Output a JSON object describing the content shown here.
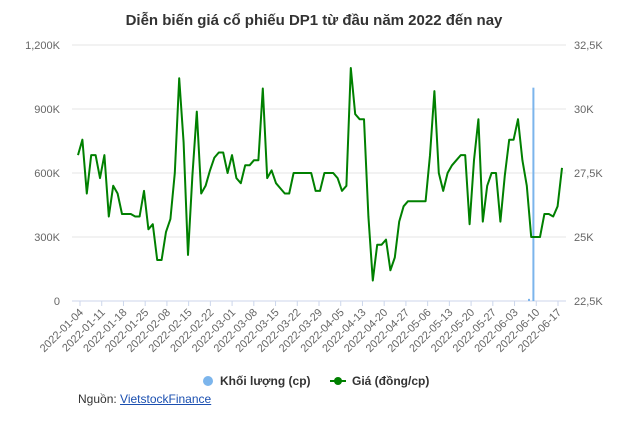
{
  "chart_data": {
    "type": "line",
    "title": "Diễn biến giá cổ phiếu DP1 từ đầu năm 2022 đến nay",
    "xlabel": "",
    "ylabel": "",
    "left_axis_ticks": [
      "0",
      "300K",
      "600K",
      "900K",
      "1,200K"
    ],
    "left_ylim": [
      0,
      1200000
    ],
    "right_axis_ticks": [
      "22,5K",
      "25K",
      "27,5K",
      "30K",
      "32,5K"
    ],
    "right_ylim": [
      22500,
      32500
    ],
    "x_tick_labels": [
      "2022-01-04",
      "2022-01-11",
      "2022-01-18",
      "2022-01-25",
      "2022-02-08",
      "2022-02-15",
      "2022-02-22",
      "2022-03-01",
      "2022-03-08",
      "2022-03-15",
      "2022-03-22",
      "2022-03-29",
      "2022-04-05",
      "2022-04-13",
      "2022-04-20",
      "2022-04-27",
      "2022-05-06",
      "2022-05-13",
      "2022-05-20",
      "2022-05-27",
      "2022-06-03",
      "2022-06-10",
      "2022-06-17"
    ],
    "grid": true,
    "legend_position": "bottom",
    "series": [
      {
        "name": "Khối lượng (cp)",
        "type": "bar",
        "axis": "left",
        "color": "#7cb5ec",
        "values": [
          0,
          0,
          0,
          0,
          0,
          0,
          0,
          0,
          0,
          0,
          0,
          0,
          0,
          0,
          0,
          0,
          0,
          0,
          0,
          0,
          0,
          0,
          0,
          0,
          0,
          0,
          0,
          0,
          0,
          0,
          0,
          0,
          0,
          0,
          0,
          0,
          0,
          0,
          0,
          0,
          0,
          0,
          0,
          0,
          0,
          0,
          0,
          0,
          0,
          0,
          0,
          0,
          0,
          0,
          0,
          0,
          0,
          0,
          0,
          0,
          0,
          0,
          0,
          0,
          0,
          0,
          0,
          0,
          0,
          0,
          0,
          0,
          0,
          0,
          0,
          0,
          0,
          0,
          0,
          0,
          0,
          0,
          0,
          0,
          0,
          0,
          0,
          0,
          0,
          0,
          0,
          0,
          0,
          0,
          0,
          0,
          0,
          0,
          0,
          0,
          0,
          0,
          0,
          0,
          0,
          0,
          0,
          0,
          0,
          0,
          0,
          0,
          0,
          0,
          0,
          0,
          0,
          0,
          0,
          0,
          0,
          0,
          0,
          0,
          0,
          0,
          0,
          0,
          0,
          0,
          0,
          0,
          10000,
          1000000,
          0,
          0,
          0,
          0,
          0,
          0,
          0,
          0,
          0,
          0,
          0,
          0,
          0,
          0,
          0,
          0,
          0,
          0,
          0
        ]
      },
      {
        "name": "Giá (đồng/cp)",
        "type": "line",
        "axis": "right",
        "color": "#008000",
        "values": []
      }
    ],
    "price_points": [
      {
        "t": 0,
        "p": 28200
      },
      {
        "t": 1,
        "p": 28800
      },
      {
        "t": 2,
        "p": 26700
      },
      {
        "t": 3,
        "p": 28200
      },
      {
        "t": 4,
        "p": 28200
      },
      {
        "t": 5,
        "p": 27300
      },
      {
        "t": 6,
        "p": 28200
      },
      {
        "t": 7,
        "p": 25800
      },
      {
        "t": 8,
        "p": 27000
      },
      {
        "t": 9,
        "p": 26700
      },
      {
        "t": 10,
        "p": 25900
      },
      {
        "t": 11,
        "p": 25900
      },
      {
        "t": 12,
        "p": 25900
      },
      {
        "t": 13,
        "p": 25800
      },
      {
        "t": 14,
        "p": 25800
      },
      {
        "t": 15,
        "p": 26800
      },
      {
        "t": 16,
        "p": 25300
      },
      {
        "t": 17,
        "p": 25500
      },
      {
        "t": 18,
        "p": 24100
      },
      {
        "t": 19,
        "p": 24100
      },
      {
        "t": 20,
        "p": 25200
      },
      {
        "t": 21,
        "p": 25700
      },
      {
        "t": 22,
        "p": 27500
      },
      {
        "t": 23,
        "p": 31200
      },
      {
        "t": 24,
        "p": 28700
      },
      {
        "t": 25,
        "p": 24300
      },
      {
        "t": 26,
        "p": 27400
      },
      {
        "t": 27,
        "p": 29900
      },
      {
        "t": 28,
        "p": 26700
      },
      {
        "t": 29,
        "p": 27000
      },
      {
        "t": 30,
        "p": 27600
      },
      {
        "t": 31,
        "p": 28100
      },
      {
        "t": 32,
        "p": 28300
      },
      {
        "t": 33,
        "p": 28300
      },
      {
        "t": 34,
        "p": 27500
      },
      {
        "t": 35,
        "p": 28200
      },
      {
        "t": 36,
        "p": 27300
      },
      {
        "t": 37,
        "p": 27100
      },
      {
        "t": 38,
        "p": 27800
      },
      {
        "t": 39,
        "p": 27800
      },
      {
        "t": 40,
        "p": 28000
      },
      {
        "t": 41,
        "p": 28000
      },
      {
        "t": 42,
        "p": 30800
      },
      {
        "t": 43,
        "p": 27300
      },
      {
        "t": 44,
        "p": 27600
      },
      {
        "t": 45,
        "p": 27100
      },
      {
        "t": 46,
        "p": 26900
      },
      {
        "t": 47,
        "p": 26700
      },
      {
        "t": 48,
        "p": 26700
      },
      {
        "t": 49,
        "p": 27500
      },
      {
        "t": 50,
        "p": 27500
      },
      {
        "t": 51,
        "p": 27500
      },
      {
        "t": 52,
        "p": 27500
      },
      {
        "t": 53,
        "p": 27500
      },
      {
        "t": 54,
        "p": 26800
      },
      {
        "t": 55,
        "p": 26800
      },
      {
        "t": 56,
        "p": 27500
      },
      {
        "t": 57,
        "p": 27500
      },
      {
        "t": 58,
        "p": 27500
      },
      {
        "t": 59,
        "p": 27300
      },
      {
        "t": 60,
        "p": 26800
      },
      {
        "t": 61,
        "p": 27000
      },
      {
        "t": 62,
        "p": 31600
      },
      {
        "t": 63,
        "p": 29800
      },
      {
        "t": 64,
        "p": 29600
      },
      {
        "t": 65,
        "p": 29600
      },
      {
        "t": 66,
        "p": 25800
      },
      {
        "t": 67,
        "p": 23300
      },
      {
        "t": 68,
        "p": 24700
      },
      {
        "t": 69,
        "p": 24700
      },
      {
        "t": 70,
        "p": 24900
      },
      {
        "t": 71,
        "p": 23700
      },
      {
        "t": 72,
        "p": 24200
      },
      {
        "t": 73,
        "p": 25600
      },
      {
        "t": 74,
        "p": 26200
      },
      {
        "t": 75,
        "p": 26400
      },
      {
        "t": 76,
        "p": 26400
      },
      {
        "t": 77,
        "p": 26400
      },
      {
        "t": 78,
        "p": 26400
      },
      {
        "t": 79,
        "p": 26400
      },
      {
        "t": 80,
        "p": 28200
      },
      {
        "t": 81,
        "p": 30700
      },
      {
        "t": 82,
        "p": 27500
      },
      {
        "t": 83,
        "p": 26800
      },
      {
        "t": 84,
        "p": 27500
      },
      {
        "t": 85,
        "p": 27800
      },
      {
        "t": 86,
        "p": 28000
      },
      {
        "t": 87,
        "p": 28200
      },
      {
        "t": 88,
        "p": 28200
      },
      {
        "t": 89,
        "p": 25500
      },
      {
        "t": 90,
        "p": 28000
      },
      {
        "t": 91,
        "p": 29600
      },
      {
        "t": 92,
        "p": 25600
      },
      {
        "t": 93,
        "p": 27000
      },
      {
        "t": 94,
        "p": 27500
      },
      {
        "t": 95,
        "p": 27500
      },
      {
        "t": 96,
        "p": 25600
      },
      {
        "t": 97,
        "p": 27400
      },
      {
        "t": 98,
        "p": 28800
      },
      {
        "t": 99,
        "p": 28800
      },
      {
        "t": 100,
        "p": 29600
      },
      {
        "t": 101,
        "p": 28000
      },
      {
        "t": 102,
        "p": 27000
      },
      {
        "t": 103,
        "p": 25000
      },
      {
        "t": 104,
        "p": 25000
      },
      {
        "t": 105,
        "p": 25000
      },
      {
        "t": 106,
        "p": 25900
      },
      {
        "t": 107,
        "p": 25900
      },
      {
        "t": 108,
        "p": 25800
      },
      {
        "t": 109,
        "p": 26200
      },
      {
        "t": 110,
        "p": 27700
      }
    ],
    "volume_bars": [
      {
        "t": 102.5,
        "v": 10000
      },
      {
        "t": 103.5,
        "v": 1000000
      }
    ]
  },
  "legend": {
    "volume_label": "Khối lượng (cp)",
    "price_label": "Giá (đồng/cp)"
  },
  "source": {
    "prefix": "Nguồn: ",
    "link_text": "VietstockFinance"
  },
  "colors": {
    "volume": "#7cb5ec",
    "price": "#008000",
    "grid": "#e6e6e6"
  }
}
